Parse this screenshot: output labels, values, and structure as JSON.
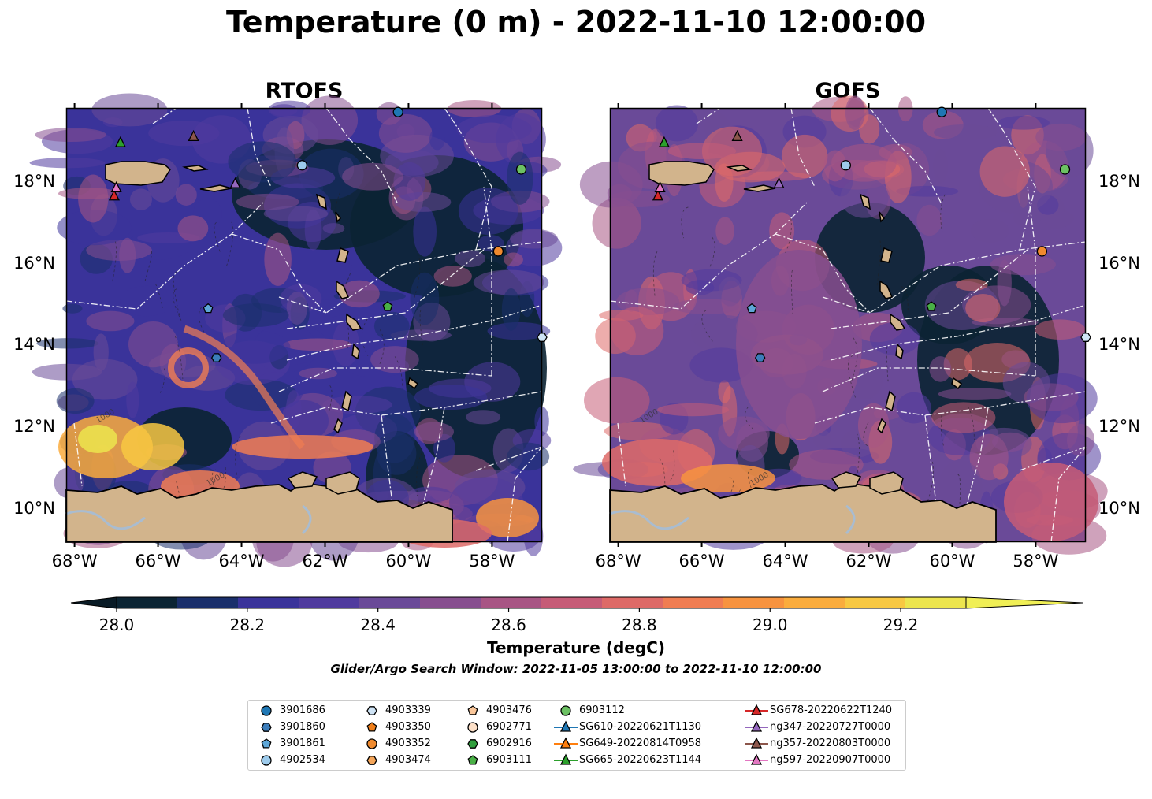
{
  "title": "Temperature (0 m) - 2022-11-10 12:00:00",
  "panels": [
    {
      "title": "RTOFS",
      "model": "rtofs"
    },
    {
      "title": "GOFS",
      "model": "gofs"
    }
  ],
  "map_extent": {
    "lon": [
      -68.2,
      -56.8
    ],
    "lat": [
      9.2,
      19.8
    ]
  },
  "lon_ticks": [
    {
      "value": -68,
      "label": "68°W"
    },
    {
      "value": -66,
      "label": "66°W"
    },
    {
      "value": -64,
      "label": "64°W"
    },
    {
      "value": -62,
      "label": "62°W"
    },
    {
      "value": -60,
      "label": "60°W"
    },
    {
      "value": -58,
      "label": "58°W"
    }
  ],
  "lat_ticks": [
    {
      "value": 18,
      "label": "18°N"
    },
    {
      "value": 16,
      "label": "16°N"
    },
    {
      "value": 14,
      "label": "14°N"
    },
    {
      "value": 12,
      "label": "12°N"
    },
    {
      "value": 10,
      "label": "10°N"
    }
  ],
  "contour_label": "1000",
  "colorbar": {
    "label": "Temperature (degC)",
    "min": 28.0,
    "max": 29.3,
    "step": 0.1,
    "extend": "both",
    "colors": [
      "#0b2433",
      "#1a2f6b",
      "#3a339a",
      "#503b9e",
      "#6a4a98",
      "#874f8f",
      "#a85584",
      "#c65c77",
      "#de6a67",
      "#f07d52",
      "#f7933f",
      "#faac3d",
      "#f8c842",
      "#ece54e"
    ],
    "under_color": "#091b26",
    "over_color": "#f0ef55",
    "ticks": [
      {
        "value": 28.0,
        "label": "28.0"
      },
      {
        "value": 28.2,
        "label": "28.2"
      },
      {
        "value": 28.4,
        "label": "28.4"
      },
      {
        "value": 28.6,
        "label": "28.6"
      },
      {
        "value": 28.8,
        "label": "28.8"
      },
      {
        "value": 29.0,
        "label": "29.0"
      },
      {
        "value": 29.2,
        "label": "29.2"
      }
    ]
  },
  "search_window": "Glider/Argo Search Window: 2022-11-05 13:00:00 to 2022-11-10 12:00:00",
  "markers": [
    {
      "id": "3901686",
      "marker": "circle",
      "color": "#1f77b4",
      "lon": -60.25,
      "lat": 19.7
    },
    {
      "id": "3901860",
      "marker": "hexagon",
      "color": "#3b7dbb",
      "lon": -64.6,
      "lat": 13.7
    },
    {
      "id": "3901861",
      "marker": "pentagon",
      "color": "#5ea7d8",
      "lon": -64.8,
      "lat": 14.9
    },
    {
      "id": "4902534",
      "marker": "circle",
      "color": "#9dcbec",
      "lon": -62.55,
      "lat": 18.4
    },
    {
      "id": "4903339",
      "marker": "hexagon",
      "color": "#cfe4f6",
      "lon": -56.8,
      "lat": 14.2
    },
    {
      "id": "4903350",
      "marker": "pentagon",
      "color": "#f07f1a",
      "lon": null,
      "lat": null
    },
    {
      "id": "4903352",
      "marker": "circle",
      "color": "#f08a2e",
      "lon": -57.85,
      "lat": 16.3
    },
    {
      "id": "4903474",
      "marker": "hexagon",
      "color": "#f5a65a",
      "lon": null,
      "lat": null
    },
    {
      "id": "4903476",
      "marker": "pentagon",
      "color": "#fbc79a",
      "lon": null,
      "lat": null
    },
    {
      "id": "6902771",
      "marker": "circle",
      "color": "#fde0c8",
      "lon": null,
      "lat": null
    },
    {
      "id": "6902916",
      "marker": "hexagon",
      "color": "#2f9e3c",
      "lon": null,
      "lat": null
    },
    {
      "id": "6903111",
      "marker": "pentagon",
      "color": "#49b046",
      "lon": -60.5,
      "lat": 14.95
    },
    {
      "id": "6903112",
      "marker": "circle",
      "color": "#6cc163",
      "lon": -57.3,
      "lat": 18.3
    },
    {
      "id": "SG610-20220621T1130",
      "marker": "triangle",
      "color": "#1f77b4",
      "lon": null,
      "lat": null,
      "line": true
    },
    {
      "id": "SG649-20220814T0958",
      "marker": "triangle",
      "color": "#ff7f0e",
      "lon": null,
      "lat": null,
      "line": true
    },
    {
      "id": "SG665-20220623T1144",
      "marker": "triangle",
      "color": "#2ca02c",
      "lon": -66.9,
      "lat": 18.95,
      "line": true
    },
    {
      "id": "SG678-20220622T1240",
      "marker": "triangle",
      "color": "#d62728",
      "lon": -67.05,
      "lat": 17.65,
      "line": true
    },
    {
      "id": "ng347-20220727T0000",
      "marker": "triangle",
      "color": "#9467bd",
      "lon": -64.15,
      "lat": 17.95,
      "line": true
    },
    {
      "id": "ng357-20220803T0000",
      "marker": "triangle",
      "color": "#8c564b",
      "lon": -65.15,
      "lat": 19.1,
      "line": true
    },
    {
      "id": "ng597-20220907T0000",
      "marker": "triangle",
      "color": "#e377c2",
      "lon": -67.0,
      "lat": 17.85,
      "line": true
    }
  ]
}
